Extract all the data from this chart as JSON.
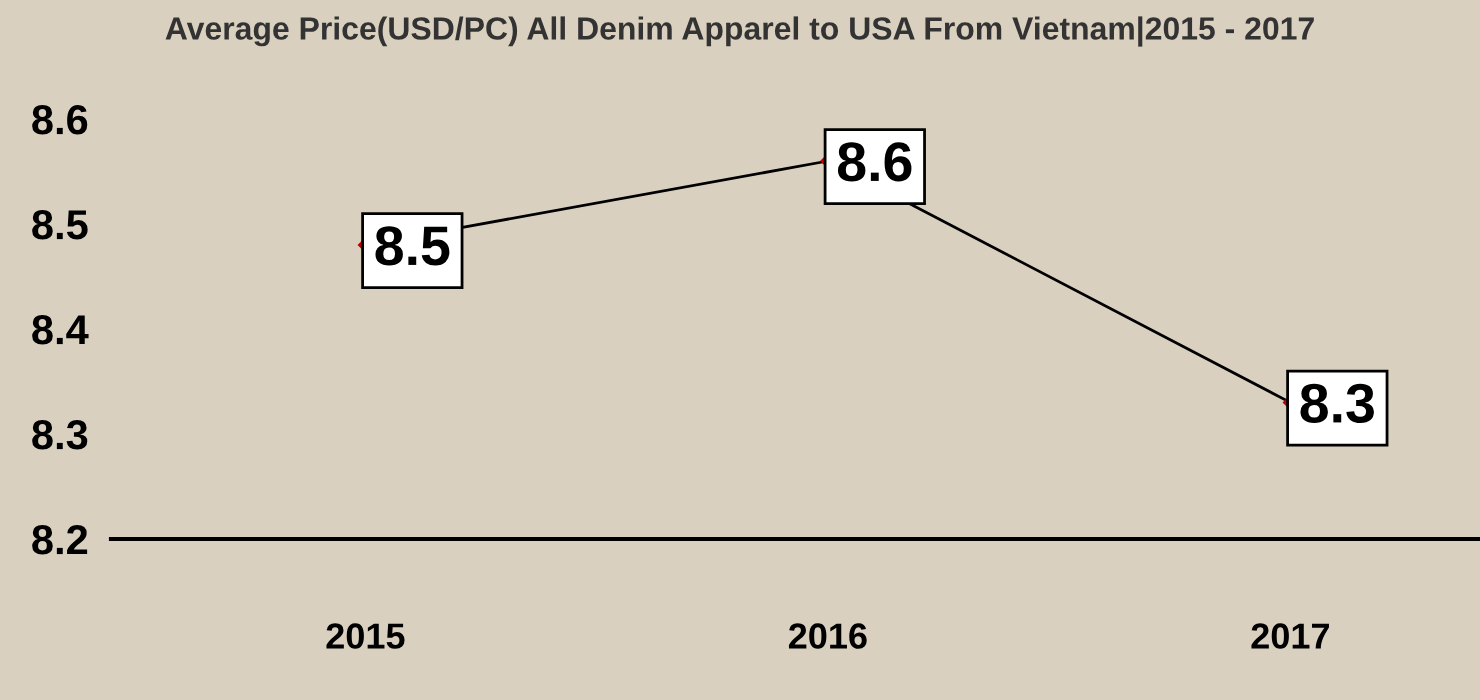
{
  "chart_data": {
    "type": "line",
    "title": "Average Price(USD/PC) All Denim Apparel to USA From Vietnam|2015 - 2017",
    "categories": [
      "2015",
      "2016",
      "2017"
    ],
    "series": [
      {
        "color": "#000000",
        "values": [
          8.48,
          8.56,
          8.33
        ],
        "value_labels": [
          "8.5",
          "8.6",
          "8.3"
        ]
      }
    ],
    "ylim": [
      8.2,
      8.6
    ],
    "yticks": [
      8.2,
      8.3,
      8.4,
      8.5,
      8.6
    ],
    "marker": "diamond",
    "line_style": "solid",
    "grid": false,
    "legend": false
  }
}
